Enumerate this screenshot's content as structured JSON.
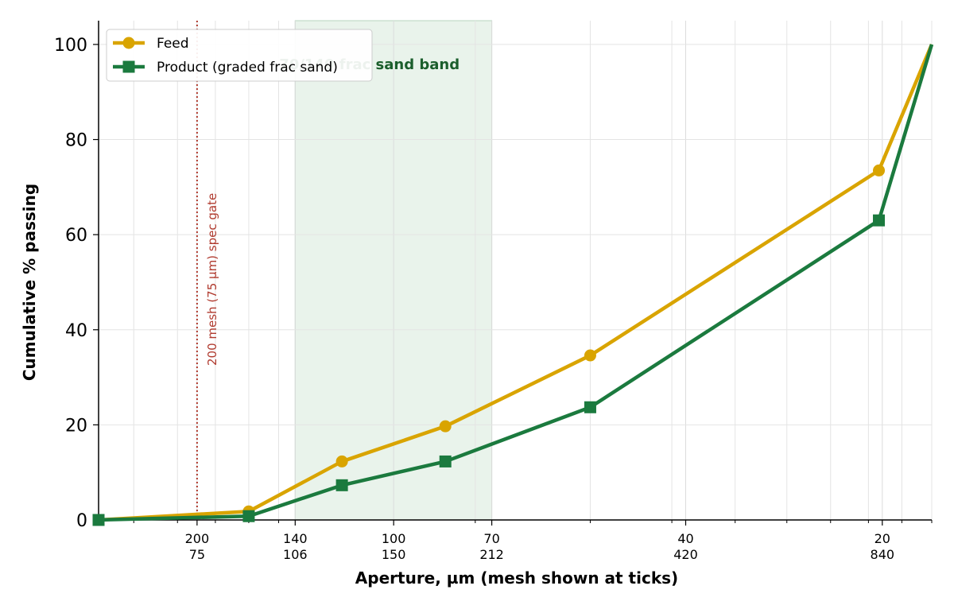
{
  "chart_data": {
    "type": "line",
    "xscale": "log",
    "xlabel": "Aperture, µm  (mesh shown at ticks)",
    "ylabel": "Cumulative % passing",
    "xlim": [
      53,
      1000
    ],
    "ylim": [
      0,
      105
    ],
    "yticks": [
      0,
      20,
      40,
      60,
      80,
      100
    ],
    "grid": true,
    "legend_position": "top-left",
    "xticks": [
      {
        "x": 75,
        "mesh": "200",
        "um": "75"
      },
      {
        "x": 106,
        "mesh": "140",
        "um": "106"
      },
      {
        "x": 150,
        "mesh": "100",
        "um": "150"
      },
      {
        "x": 212,
        "mesh": "70",
        "um": "212"
      },
      {
        "x": 420,
        "mesh": "40",
        "um": "420"
      },
      {
        "x": 840,
        "mesh": "20",
        "um": "840"
      }
    ],
    "series": [
      {
        "name": "Feed",
        "color": "#d9a400",
        "marker": "circle",
        "x": [
          53,
          90,
          125,
          180,
          300,
          830,
          1000
        ],
        "y": [
          0,
          1.8,
          12.3,
          19.7,
          34.6,
          73.5,
          100
        ]
      },
      {
        "name": "Product (graded frac sand)",
        "color": "#1b7a3e",
        "marker": "square",
        "x": [
          53,
          90,
          125,
          180,
          300,
          830,
          1000
        ],
        "y": [
          0,
          0.8,
          7.3,
          12.3,
          23.7,
          63.0,
          100
        ]
      }
    ],
    "band": {
      "x0": 106,
      "x1": 212,
      "label": "70/140 frac sand band",
      "color": "#e9f3eb",
      "label_color": "#1b5e2c"
    },
    "vline": {
      "x": 75,
      "label": "200 mesh (75 µm) spec gate",
      "color": "#b03a2e"
    }
  }
}
